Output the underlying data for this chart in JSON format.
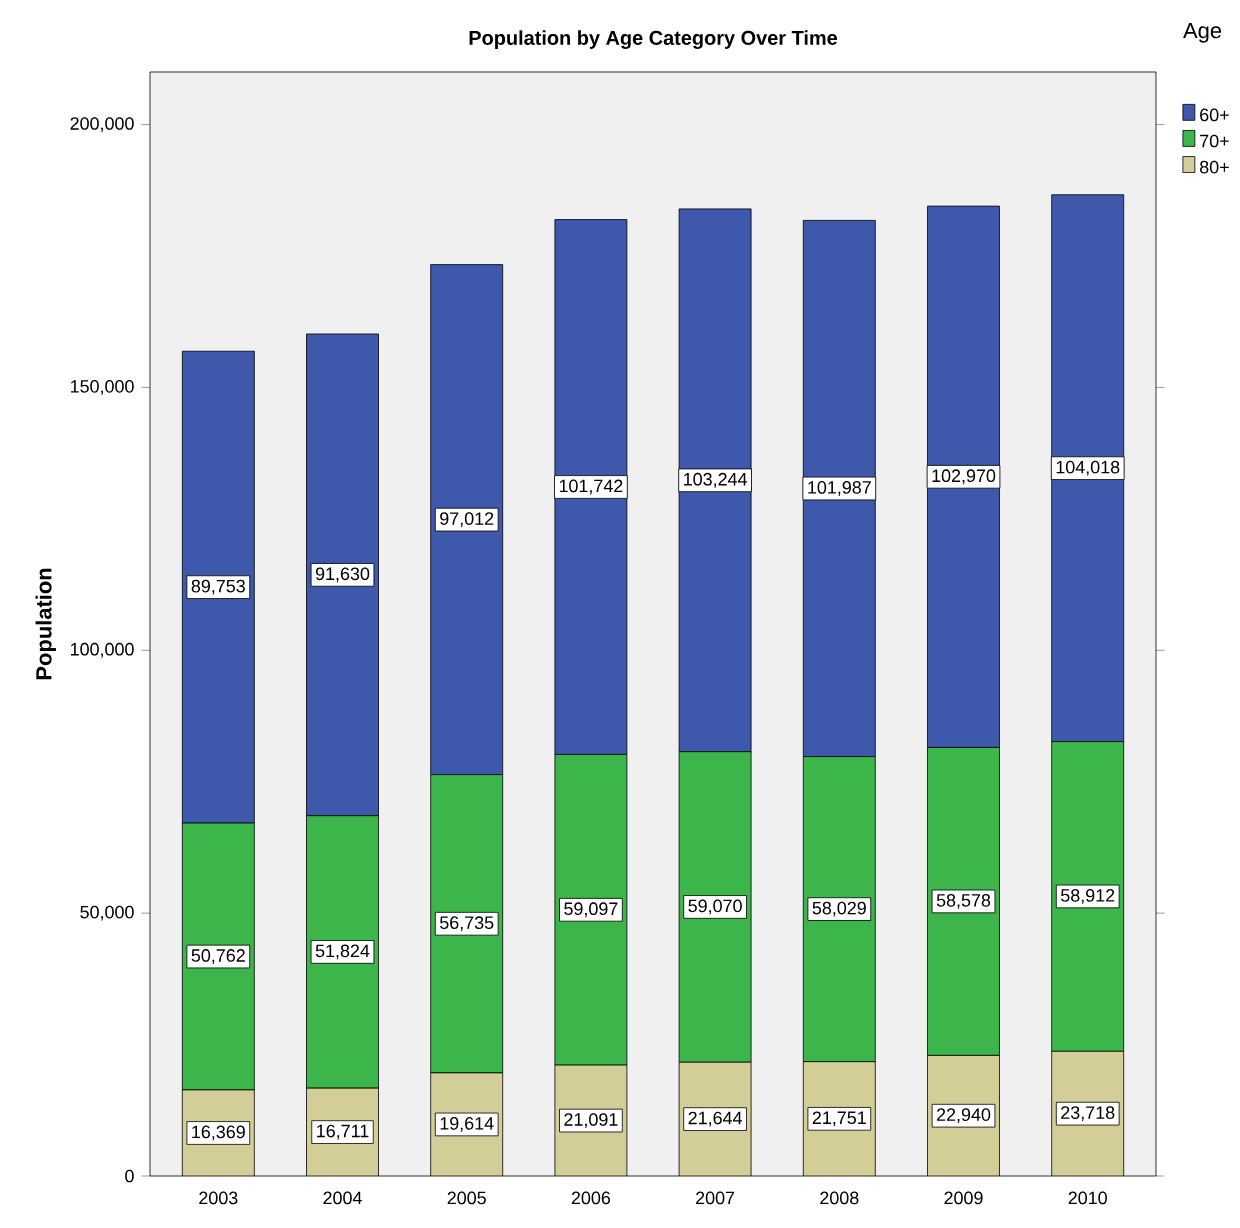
{
  "chart_data": {
    "type": "bar",
    "stacked": true,
    "title": "Population by Age Category Over Time",
    "ylabel": "Population",
    "legend_title": "Age",
    "legend": "top right",
    "categories": [
      "2003",
      "2004",
      "2005",
      "2006",
      "2007",
      "2008",
      "2009",
      "2010"
    ],
    "ylim": [
      0,
      210000
    ],
    "yticks": [
      0,
      {
        "value": 50000,
        "label": "50,000"
      },
      {
        "value": 100000,
        "label": "100,000"
      },
      {
        "value": 150000,
        "label": "150,000"
      },
      {
        "value": 200000,
        "label": "200,000"
      }
    ],
    "series": [
      {
        "name": "80+",
        "color": "#d3ce97",
        "values": [
          16369,
          16711,
          19614,
          21091,
          21644,
          21751,
          22940,
          23718
        ],
        "value_labels": [
          "16,369",
          "16,711",
          "19,614",
          "21,091",
          "21,644",
          "21,751",
          "22,940",
          "23,718"
        ]
      },
      {
        "name": "70+",
        "color": "#3cb54a",
        "values": [
          50762,
          51824,
          56735,
          59097,
          59070,
          58029,
          58578,
          58912
        ],
        "value_labels": [
          "50,762",
          "51,824",
          "56,735",
          "59,097",
          "59,070",
          "58,029",
          "58,578",
          "58,912"
        ]
      },
      {
        "name": "60+",
        "color": "#3e58ac",
        "values": [
          89753,
          91630,
          97012,
          101742,
          103244,
          101987,
          102970,
          104018
        ],
        "value_labels": [
          "89,753",
          "91,630",
          "97,012",
          "101,742",
          "103,244",
          "101,987",
          "102,970",
          "104,018"
        ]
      }
    ]
  }
}
